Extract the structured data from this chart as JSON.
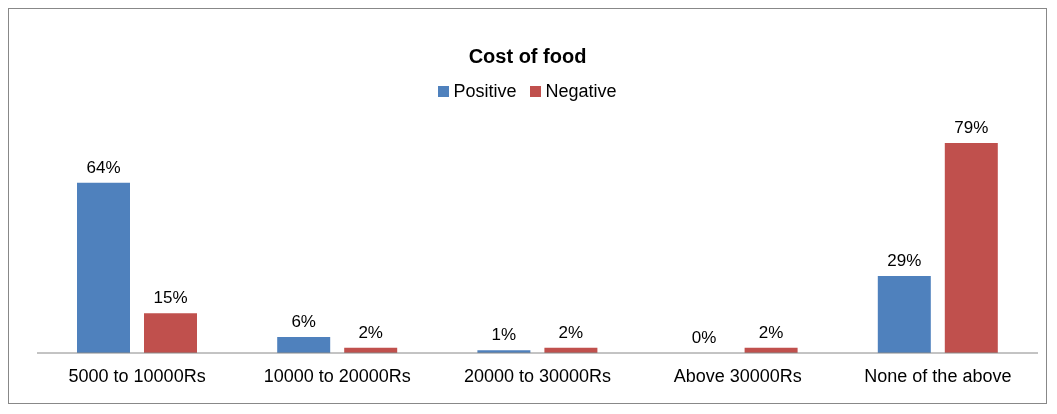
{
  "chart_data": {
    "type": "bar",
    "title": "Cost of food",
    "categories": [
      "5000 to 10000Rs",
      "10000 to 20000Rs",
      "20000 to 30000Rs",
      "Above 30000Rs",
      "None of the above"
    ],
    "series": [
      {
        "name": "Positive",
        "color": "#4f81bd",
        "values": [
          64,
          6,
          1,
          0,
          29
        ],
        "value_labels": [
          "64%",
          "6%",
          "1%",
          "0%",
          "29%"
        ]
      },
      {
        "name": "Negative",
        "color": "#c0504d",
        "values": [
          15,
          2,
          2,
          2,
          79
        ],
        "value_labels": [
          "15%",
          "2%",
          "2%",
          "2%",
          "79%"
        ]
      }
    ],
    "legend": "top",
    "grid": false
  }
}
